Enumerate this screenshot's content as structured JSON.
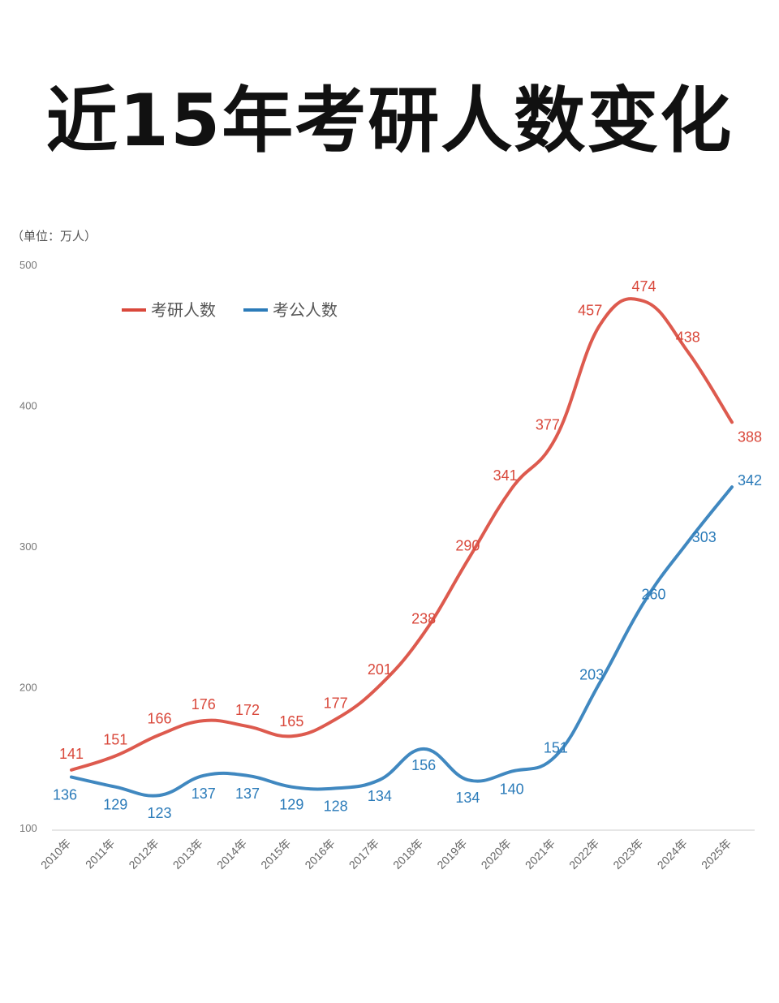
{
  "title": "近15年考研人数变化",
  "unit_label": "（单位：万人）",
  "colors": {
    "kaoyan": "#d9483b",
    "kaogong": "#2b7bb9",
    "axis_text": "#777777",
    "grid": "#e6e6e6"
  },
  "legend": [
    {
      "label": "考研人数",
      "color": "#d9483b"
    },
    {
      "label": "考公人数",
      "color": "#2b7bb9"
    }
  ],
  "chart_data": {
    "type": "line",
    "title": "近15年考研人数变化",
    "xlabel": "",
    "ylabel": "单位：万人",
    "ylim": [
      100,
      500
    ],
    "yticks": [
      100,
      200,
      300,
      400,
      500
    ],
    "grid": false,
    "legend_position": "top-left",
    "categories": [
      "2010年",
      "2011年",
      "2012年",
      "2013年",
      "2014年",
      "2015年",
      "2016年",
      "2017年",
      "2018年",
      "2019年",
      "2020年",
      "2021年",
      "2022年",
      "2023年",
      "2024年",
      "2025年"
    ],
    "series": [
      {
        "name": "考研人数",
        "color": "#d9483b",
        "values": [
          141,
          151,
          166,
          176,
          172,
          165,
          177,
          201,
          238,
          290,
          341,
          377,
          457,
          474,
          438,
          388
        ]
      },
      {
        "name": "考公人数",
        "color": "#2b7bb9",
        "values": [
          136,
          129,
          123,
          137,
          137,
          129,
          128,
          134,
          156,
          134,
          140,
          151,
          203,
          260,
          303,
          342
        ]
      }
    ]
  }
}
